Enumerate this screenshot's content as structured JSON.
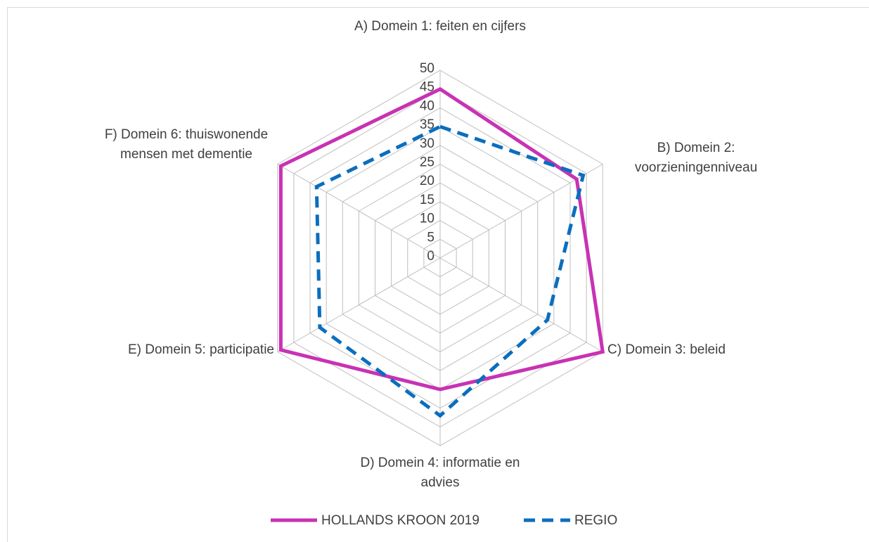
{
  "chart_data": {
    "type": "radar",
    "categories": [
      "A) Domein 1: feiten en cijfers",
      "B) Domein 2: voorzieningenniveau",
      "C) Domein 3: beleid",
      "D) Domein 4: informatie en advies",
      "E) Domein 5: participatie",
      "F) Domein 6: thuiswonende mensen met dementie"
    ],
    "series": [
      {
        "name": "HOLLANDS KROON 2019",
        "color": "#c832b4",
        "values": [
          45,
          42,
          50,
          35,
          49,
          49
        ]
      },
      {
        "name": "REGIO",
        "color": "#0a6ebe",
        "values": [
          35,
          44,
          33,
          42,
          37,
          38
        ]
      }
    ],
    "ylim": [
      0,
      50
    ],
    "yticks": [
      0,
      5,
      10,
      15,
      20,
      25,
      30,
      35,
      40,
      45,
      50
    ],
    "grid": true,
    "legend": "bottom"
  }
}
